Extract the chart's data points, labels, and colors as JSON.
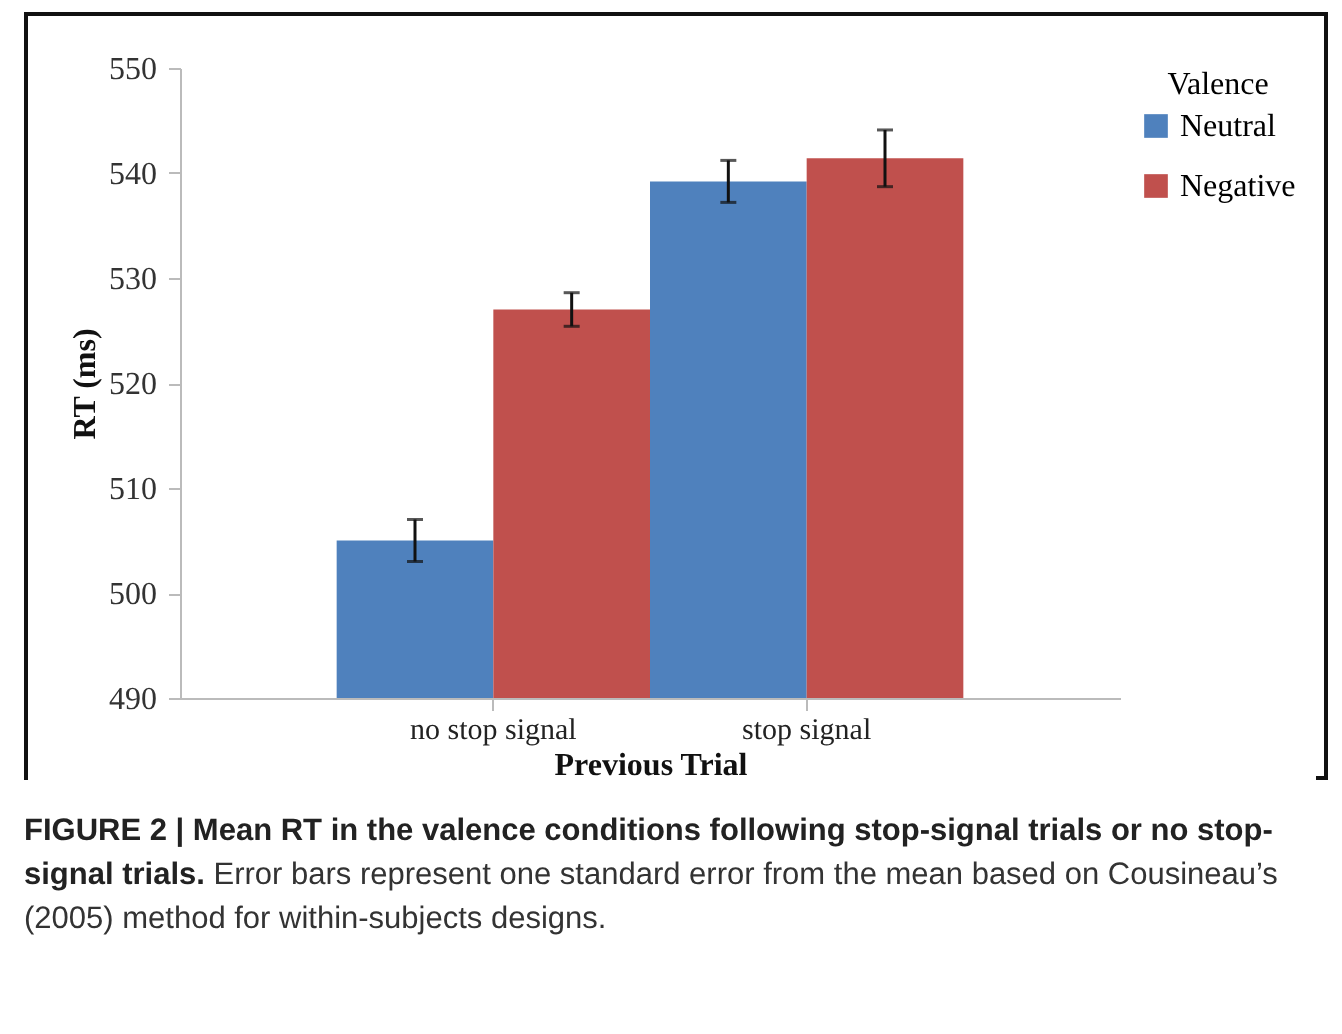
{
  "chart_data": {
    "type": "bar",
    "title": "FIGURE 2 | Mean RT in the valence conditions following stop-signal trials or no stop-signal trials.",
    "annotations": [
      "Error bars represent one standard error from the mean based on Cousineau’s (2005) method for within-subjects designs."
    ],
    "xlabel": "Previous Trial",
    "ylabel": "RT (ms)",
    "legend_title": "Valence",
    "categories": [
      "no stop signal",
      "stop signal"
    ],
    "series": [
      {
        "name": "Neutral",
        "color": "#4f81bd",
        "values": [
          505,
          539.2
        ],
        "errors": [
          2,
          2
        ]
      },
      {
        "name": "Negative",
        "color": "#c0504d",
        "values": [
          527,
          541.4
        ],
        "errors": [
          1.6,
          2.7
        ]
      }
    ],
    "ylim": [
      490,
      550
    ],
    "yticks": [
      490,
      500,
      510,
      520,
      530,
      540,
      550
    ],
    "legend": "top right"
  }
}
